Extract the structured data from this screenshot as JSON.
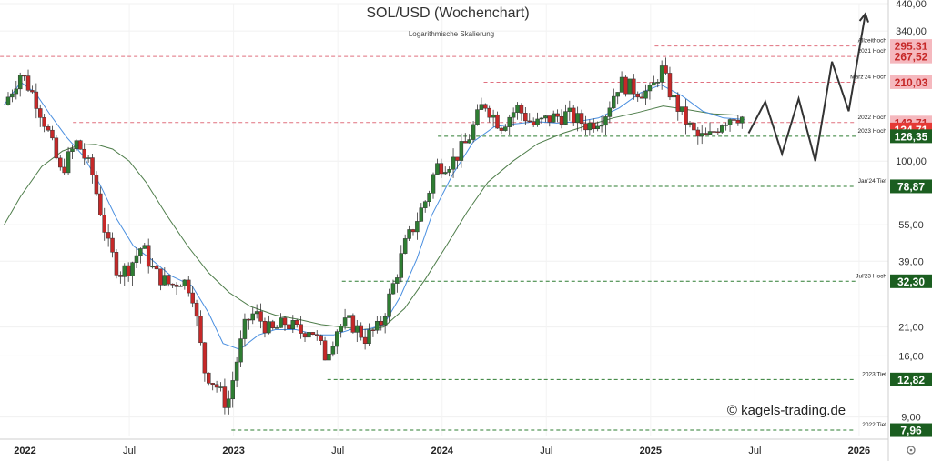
{
  "chart_data": {
    "type": "candlestick",
    "title": "SOL/USD (Wochenchart)",
    "subtitle": "Logarithmische Skalierung",
    "watermark": "© kagels-trading.de",
    "scale": "log",
    "ylim": [
      7.5,
      440
    ],
    "x_ticks": [
      {
        "t": 2022.0,
        "label": "2022",
        "bold": true
      },
      {
        "t": 2022.5,
        "label": "Jul",
        "bold": false
      },
      {
        "t": 2023.0,
        "label": "2023",
        "bold": true
      },
      {
        "t": 2023.5,
        "label": "Jul",
        "bold": false
      },
      {
        "t": 2024.0,
        "label": "2024",
        "bold": true
      },
      {
        "t": 2024.5,
        "label": "Jul",
        "bold": false
      },
      {
        "t": 2025.0,
        "label": "2025",
        "bold": true
      },
      {
        "t": 2025.5,
        "label": "Jul",
        "bold": false
      },
      {
        "t": 2026.0,
        "label": "2026",
        "bold": true
      }
    ],
    "y_ticks": [
      {
        "v": 440,
        "label": "440,00"
      },
      {
        "v": 340,
        "label": "340,00"
      },
      {
        "v": 100,
        "label": "100,00"
      },
      {
        "v": 55,
        "label": "55,00"
      },
      {
        "v": 39,
        "label": "39,00"
      },
      {
        "v": 21,
        "label": "21,00"
      },
      {
        "v": 16,
        "label": "16,00"
      },
      {
        "v": 9,
        "label": "9,00"
      }
    ],
    "level_lines": [
      {
        "v": 295.31,
        "label": "Allzeithoch",
        "color": "#e0707f",
        "from": 2025.02
      },
      {
        "v": 267.52,
        "label": "2021 Hoch",
        "color": "#e0707f",
        "from": 2021.85
      },
      {
        "v": 210.03,
        "label": "März'24 Hoch",
        "color": "#e0707f",
        "from": 2024.2
      },
      {
        "v": 143.71,
        "label": "2022 Hoch",
        "color": "#e0707f",
        "from": 2022.23
      },
      {
        "v": 126.35,
        "label": "2023 Hoch",
        "color": "#2e7d32",
        "from": 2023.98
      },
      {
        "v": 78.87,
        "label": "Jan'24 Tief",
        "color": "#2e7d32",
        "from": 2024.0
      },
      {
        "v": 32.3,
        "label": "Jul'23 Hoch",
        "color": "#2e7d32",
        "from": 2023.52
      },
      {
        "v": 12.82,
        "label": "2023 Tief",
        "color": "#2e7d32",
        "from": 2023.45
      },
      {
        "v": 7.96,
        "label": "2022 Tief",
        "color": "#2e7d32",
        "from": 2022.99
      }
    ],
    "price_boxes": [
      {
        "v": 295.31,
        "label": "295,31",
        "bg": "#f5b8be",
        "fg": "#c62828"
      },
      {
        "v": 267.52,
        "label": "267,52",
        "bg": "#f5b8be",
        "fg": "#c62828"
      },
      {
        "v": 210.03,
        "label": "210,03",
        "bg": "#f5b8be",
        "fg": "#c62828"
      },
      {
        "v": 143.71,
        "label": "143,71",
        "bg": "#f5b8be",
        "fg": "#c62828"
      },
      {
        "v": 134.71,
        "label": "134,71",
        "bg": "#e53935",
        "fg": "#ffffff"
      },
      {
        "v": 126.35,
        "label": "126,35",
        "bg": "#1b5e20",
        "fg": "#ffffff"
      },
      {
        "v": 78.87,
        "label": "78,87",
        "bg": "#1b5e20",
        "fg": "#ffffff"
      },
      {
        "v": 32.3,
        "label": "32,30",
        "bg": "#1b5e20",
        "fg": "#ffffff"
      },
      {
        "v": 12.82,
        "label": "12,82",
        "bg": "#1b5e20",
        "fg": "#ffffff"
      },
      {
        "v": 7.96,
        "label": "7,96",
        "bg": "#1b5e20",
        "fg": "#ffffff"
      }
    ],
    "price_path": [
      [
        2021.9,
        170
      ],
      [
        2021.98,
        230
      ],
      [
        2022.05,
        180
      ],
      [
        2022.1,
        140
      ],
      [
        2022.17,
        90
      ],
      [
        2022.25,
        120
      ],
      [
        2022.32,
        90
      ],
      [
        2022.4,
        45
      ],
      [
        2022.45,
        35
      ],
      [
        2022.5,
        37
      ],
      [
        2022.56,
        45
      ],
      [
        2022.62,
        35
      ],
      [
        2022.7,
        31
      ],
      [
        2022.75,
        33
      ],
      [
        2022.8,
        30
      ],
      [
        2022.86,
        14
      ],
      [
        2022.92,
        12
      ],
      [
        2022.97,
        10
      ],
      [
        2023.02,
        16
      ],
      [
        2023.06,
        22
      ],
      [
        2023.1,
        24
      ],
      [
        2023.18,
        20
      ],
      [
        2023.25,
        22
      ],
      [
        2023.32,
        20
      ],
      [
        2023.37,
        21
      ],
      [
        2023.44,
        16
      ],
      [
        2023.5,
        21
      ],
      [
        2023.56,
        22
      ],
      [
        2023.63,
        19
      ],
      [
        2023.7,
        21
      ],
      [
        2023.76,
        30
      ],
      [
        2023.82,
        45
      ],
      [
        2023.88,
        58
      ],
      [
        2023.93,
        72
      ],
      [
        2023.97,
        95
      ],
      [
        2024.05,
        100
      ],
      [
        2024.12,
        120
      ],
      [
        2024.2,
        175
      ],
      [
        2024.28,
        140
      ],
      [
        2024.36,
        165
      ],
      [
        2024.44,
        140
      ],
      [
        2024.52,
        150
      ],
      [
        2024.6,
        155
      ],
      [
        2024.7,
        140
      ],
      [
        2024.78,
        155
      ],
      [
        2024.85,
        210
      ],
      [
        2024.93,
        195
      ],
      [
        2025.0,
        190
      ],
      [
        2025.05,
        240
      ],
      [
        2025.1,
        185
      ],
      [
        2025.16,
        150
      ],
      [
        2025.22,
        125
      ],
      [
        2025.28,
        125
      ],
      [
        2025.34,
        145
      ],
      [
        2025.4,
        155
      ],
      [
        2025.45,
        150
      ]
    ],
    "ma_fast": [
      [
        2021.9,
        170
      ],
      [
        2021.98,
        210
      ],
      [
        2022.05,
        190
      ],
      [
        2022.12,
        155
      ],
      [
        2022.2,
        125
      ],
      [
        2022.28,
        105
      ],
      [
        2022.36,
        80
      ],
      [
        2022.44,
        58
      ],
      [
        2022.52,
        45
      ],
      [
        2022.6,
        40
      ],
      [
        2022.7,
        34
      ],
      [
        2022.8,
        31
      ],
      [
        2022.88,
        24
      ],
      [
        2022.95,
        18
      ],
      [
        2023.03,
        17
      ],
      [
        2023.12,
        19.5
      ],
      [
        2023.2,
        20.5
      ],
      [
        2023.3,
        20.5
      ],
      [
        2023.4,
        19.5
      ],
      [
        2023.48,
        19.5
      ],
      [
        2023.56,
        20.5
      ],
      [
        2023.64,
        20.5
      ],
      [
        2023.72,
        21.5
      ],
      [
        2023.8,
        28
      ],
      [
        2023.88,
        40
      ],
      [
        2023.95,
        60
      ],
      [
        2024.05,
        88
      ],
      [
        2024.15,
        120
      ],
      [
        2024.25,
        138
      ],
      [
        2024.35,
        142
      ],
      [
        2024.45,
        145
      ],
      [
        2024.55,
        143
      ],
      [
        2024.65,
        145
      ],
      [
        2024.75,
        150
      ],
      [
        2024.85,
        165
      ],
      [
        2024.95,
        190
      ],
      [
        2025.05,
        205
      ],
      [
        2025.15,
        185
      ],
      [
        2025.25,
        160
      ],
      [
        2025.35,
        150
      ],
      [
        2025.45,
        148
      ]
    ],
    "ma_slow": [
      [
        2021.9,
        55
      ],
      [
        2021.98,
        72
      ],
      [
        2022.08,
        95
      ],
      [
        2022.18,
        110
      ],
      [
        2022.26,
        116
      ],
      [
        2022.34,
        117
      ],
      [
        2022.42,
        112
      ],
      [
        2022.5,
        100
      ],
      [
        2022.58,
        82
      ],
      [
        2022.68,
        60
      ],
      [
        2022.78,
        45
      ],
      [
        2022.88,
        35
      ],
      [
        2022.98,
        29
      ],
      [
        2023.08,
        25.5
      ],
      [
        2023.2,
        23.5
      ],
      [
        2023.32,
        22.5
      ],
      [
        2023.42,
        21.5
      ],
      [
        2023.52,
        21
      ],
      [
        2023.62,
        20.5
      ],
      [
        2023.72,
        21
      ],
      [
        2023.82,
        25
      ],
      [
        2023.92,
        33
      ],
      [
        2024.02,
        45
      ],
      [
        2024.12,
        62
      ],
      [
        2024.22,
        82
      ],
      [
        2024.34,
        100
      ],
      [
        2024.46,
        118
      ],
      [
        2024.58,
        130
      ],
      [
        2024.7,
        140
      ],
      [
        2024.82,
        150
      ],
      [
        2024.94,
        158
      ],
      [
        2025.06,
        168
      ],
      [
        2025.18,
        162
      ],
      [
        2025.3,
        156
      ],
      [
        2025.42,
        154
      ]
    ],
    "projection": [
      [
        2025.47,
        130
      ],
      [
        2025.55,
        175
      ],
      [
        2025.63,
        107
      ],
      [
        2025.71,
        180
      ],
      [
        2025.79,
        100
      ],
      [
        2025.87,
        255
      ],
      [
        2025.95,
        160
      ],
      [
        2026.03,
        400
      ]
    ]
  }
}
